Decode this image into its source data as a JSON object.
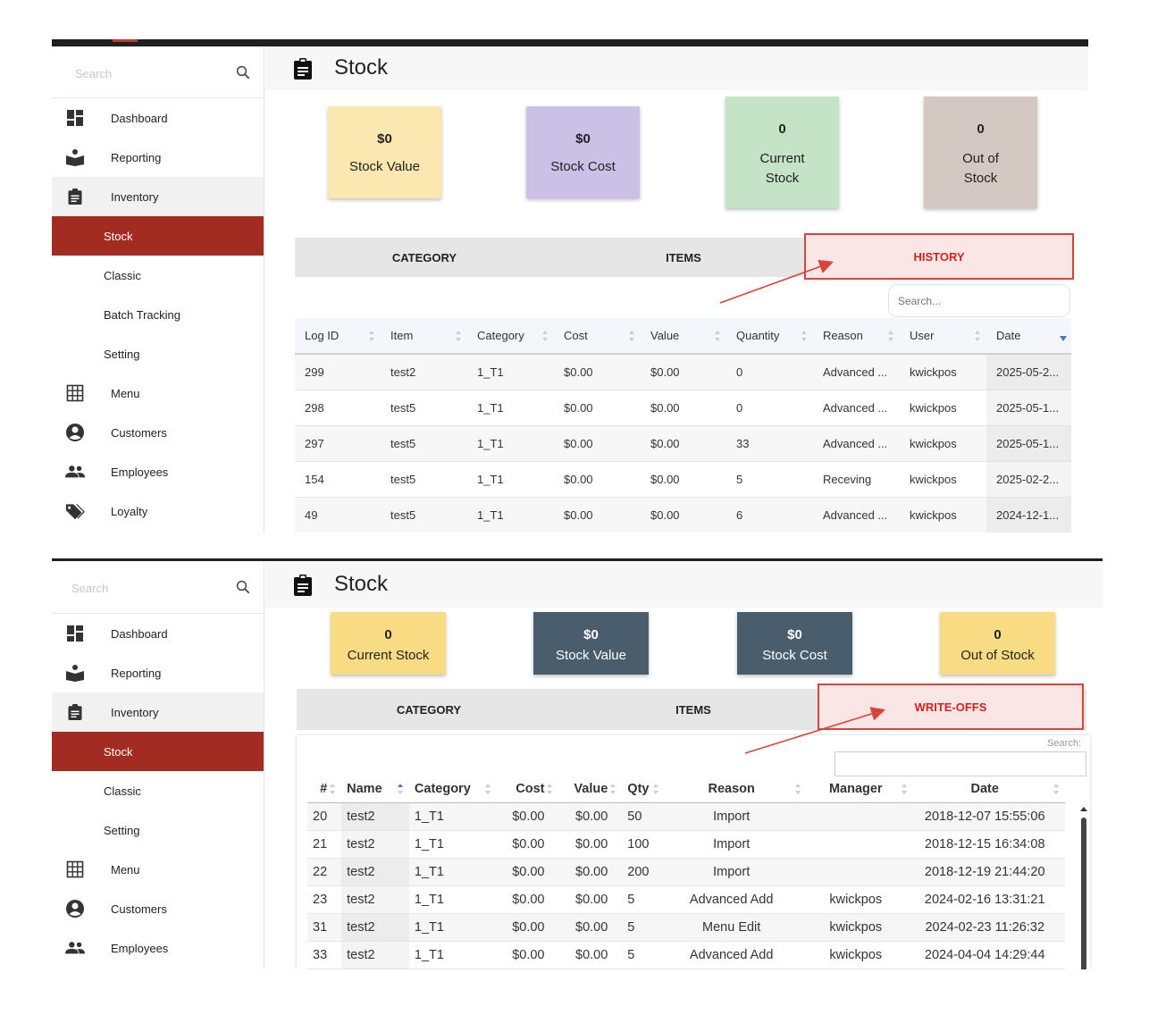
{
  "top": {
    "search_placeholder": "Search",
    "nav": [
      {
        "label": "Dashboard",
        "icon": "dashboard-icon"
      },
      {
        "label": "Reporting",
        "icon": "reporting-icon"
      },
      {
        "label": "Inventory",
        "icon": "clipboard-icon"
      },
      {
        "label": "Stock"
      },
      {
        "label": "Classic"
      },
      {
        "label": "Batch Tracking"
      },
      {
        "label": "Setting"
      },
      {
        "label": "Menu",
        "icon": "grid-icon"
      },
      {
        "label": "Customers",
        "icon": "account-circle-icon"
      },
      {
        "label": "Employees",
        "icon": "people-icon"
      },
      {
        "label": "Loyalty",
        "icon": "tags-icon"
      }
    ],
    "page_title": "Stock",
    "cards": [
      {
        "value": "$0",
        "label": "Stock Value",
        "color": "#fae8b0"
      },
      {
        "value": "$0",
        "label": "Stock Cost",
        "color": "#cbc0e6"
      },
      {
        "value": "0",
        "label": "Current Stock",
        "color": "#c5e3c6"
      },
      {
        "value": "0",
        "label": "Out of Stock",
        "color": "#d4c8c3"
      }
    ],
    "tabs": [
      "CATEGORY",
      "ITEMS",
      "HISTORY"
    ],
    "table_search_placeholder": "Search...",
    "columns": [
      "Log ID",
      "Item",
      "Category",
      "Cost",
      "Value",
      "Quantity",
      "Reason",
      "User",
      "Date"
    ],
    "rows": [
      [
        "299",
        "test2",
        "1_T1",
        "$0.00",
        "$0.00",
        "0",
        "Advanced ...",
        "kwickpos",
        "2025-05-2..."
      ],
      [
        "298",
        "test5",
        "1_T1",
        "$0.00",
        "$0.00",
        "0",
        "Advanced ...",
        "kwickpos",
        "2025-05-1..."
      ],
      [
        "297",
        "test5",
        "1_T1",
        "$0.00",
        "$0.00",
        "33",
        "Advanced ...",
        "kwickpos",
        "2025-05-1..."
      ],
      [
        "154",
        "test5",
        "1_T1",
        "$0.00",
        "$0.00",
        "5",
        "Receving",
        "kwickpos",
        "2025-02-2..."
      ],
      [
        "49",
        "test5",
        "1_T1",
        "$0.00",
        "$0.00",
        "6",
        "Advanced ...",
        "kwickpos",
        "2024-12-1..."
      ]
    ]
  },
  "bottom": {
    "search_placeholder": "Search",
    "nav": [
      {
        "label": "Dashboard",
        "icon": "dashboard-icon"
      },
      {
        "label": "Reporting",
        "icon": "reporting-icon"
      },
      {
        "label": "Inventory",
        "icon": "clipboard-icon"
      },
      {
        "label": "Stock"
      },
      {
        "label": "Classic"
      },
      {
        "label": "Setting"
      },
      {
        "label": "Menu",
        "icon": "grid-icon"
      },
      {
        "label": "Customers",
        "icon": "account-circle-icon"
      },
      {
        "label": "Employees",
        "icon": "people-icon"
      }
    ],
    "page_title": "Stock",
    "cards": [
      {
        "value": "0",
        "label": "Current Stock",
        "color": "#f8dc83",
        "text_color": "#222222"
      },
      {
        "value": "$0",
        "label": "Stock Value",
        "color": "#4a5d6c",
        "text_color": "#ffffff"
      },
      {
        "value": "$0",
        "label": "Stock Cost",
        "color": "#4a5d6c",
        "text_color": "#ffffff"
      },
      {
        "value": "0",
        "label": "Out of Stock",
        "color": "#f8dc83",
        "text_color": "#222222"
      }
    ],
    "tabs": [
      "CATEGORY",
      "ITEMS",
      "WRITE-OFFS"
    ],
    "search_label": "Search:",
    "columns": [
      "#",
      "Name",
      "Category",
      "Cost",
      "Value",
      "Qty",
      "Reason",
      "Manager",
      "Date"
    ],
    "rows": [
      [
        "20",
        "test2",
        "1_T1",
        "$0.00",
        "$0.00",
        "50",
        "Import",
        "",
        "2018-12-07 15:55:06"
      ],
      [
        "21",
        "test2",
        "1_T1",
        "$0.00",
        "$0.00",
        "100",
        "Import",
        "",
        "2018-12-15 16:34:08"
      ],
      [
        "22",
        "test2",
        "1_T1",
        "$0.00",
        "$0.00",
        "200",
        "Import",
        "",
        "2018-12-19 21:44:20"
      ],
      [
        "23",
        "test2",
        "1_T1",
        "$0.00",
        "$0.00",
        "5",
        "Advanced Add",
        "kwickpos",
        "2024-02-16 13:31:21"
      ],
      [
        "31",
        "test2",
        "1_T1",
        "$0.00",
        "$0.00",
        "5",
        "Menu Edit",
        "kwickpos",
        "2024-02-23 11:26:32"
      ],
      [
        "33",
        "test2",
        "1_T1",
        "$0.00",
        "$0.00",
        "5",
        "Advanced Add",
        "kwickpos",
        "2024-04-04 14:29:44"
      ]
    ]
  },
  "colors": {
    "accent": "#a22b22",
    "highlight": "#d9443a"
  }
}
